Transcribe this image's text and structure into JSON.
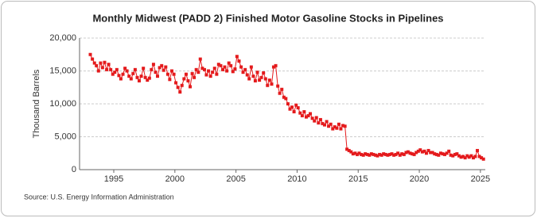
{
  "chart_data": {
    "type": "line",
    "title": "Monthly Midwest (PADD 2) Finished Motor Gasoline Stocks in Pipelines",
    "y_label": "Thousand Barrels",
    "source": "Source: U.S. Energy Information Administration",
    "color": "#e41a1c",
    "grid": true,
    "xlim": [
      1992.2,
      2025.4
    ],
    "xticks": [
      1995,
      2000,
      2005,
      2010,
      2015,
      2020,
      2025
    ],
    "ylim": [
      0,
      20000
    ],
    "yticks": [
      0,
      {
        "value": 5000,
        "label": "5,000"
      },
      {
        "value": 10000,
        "label": "10,000"
      },
      {
        "value": 15000,
        "label": "15,000"
      },
      {
        "value": 20000,
        "label": "20,000"
      }
    ],
    "x": [
      1993.08,
      1993.25,
      1993.42,
      1993.58,
      1993.75,
      1993.92,
      1994.08,
      1994.25,
      1994.42,
      1994.58,
      1994.75,
      1994.92,
      1995.08,
      1995.25,
      1995.42,
      1995.58,
      1995.75,
      1995.92,
      1996.08,
      1996.25,
      1996.42,
      1996.58,
      1996.75,
      1996.92,
      1997.08,
      1997.25,
      1997.42,
      1997.58,
      1997.75,
      1997.92,
      1998.08,
      1998.25,
      1998.42,
      1998.58,
      1998.75,
      1998.92,
      1999.08,
      1999.25,
      1999.42,
      1999.58,
      1999.75,
      1999.92,
      2000.08,
      2000.25,
      2000.42,
      2000.58,
      2000.75,
      2000.92,
      2001.08,
      2001.25,
      2001.42,
      2001.58,
      2001.75,
      2001.92,
      2002.08,
      2002.25,
      2002.42,
      2002.58,
      2002.75,
      2002.92,
      2003.08,
      2003.25,
      2003.42,
      2003.58,
      2003.75,
      2003.92,
      2004.08,
      2004.25,
      2004.42,
      2004.58,
      2004.75,
      2004.92,
      2005.08,
      2005.25,
      2005.42,
      2005.58,
      2005.75,
      2005.92,
      2006.08,
      2006.25,
      2006.42,
      2006.58,
      2006.75,
      2006.92,
      2007.08,
      2007.25,
      2007.42,
      2007.58,
      2007.75,
      2007.92,
      2008.08,
      2008.25,
      2008.42,
      2008.58,
      2008.75,
      2008.92,
      2009.08,
      2009.25,
      2009.42,
      2009.58,
      2009.75,
      2009.92,
      2010.08,
      2010.25,
      2010.42,
      2010.58,
      2010.75,
      2010.92,
      2011.08,
      2011.25,
      2011.42,
      2011.58,
      2011.75,
      2011.92,
      2012.08,
      2012.25,
      2012.42,
      2012.58,
      2012.75,
      2012.92,
      2013.08,
      2013.25,
      2013.42,
      2013.58,
      2013.75,
      2013.92,
      2014.08,
      2014.25,
      2014.42,
      2014.58,
      2014.75,
      2014.92,
      2015.08,
      2015.25,
      2015.42,
      2015.58,
      2015.75,
      2015.92,
      2016.08,
      2016.25,
      2016.42,
      2016.58,
      2016.75,
      2016.92,
      2017.08,
      2017.25,
      2017.42,
      2017.58,
      2017.75,
      2017.92,
      2018.08,
      2018.25,
      2018.42,
      2018.58,
      2018.75,
      2018.92,
      2019.08,
      2019.25,
      2019.42,
      2019.58,
      2019.75,
      2019.92,
      2020.08,
      2020.25,
      2020.42,
      2020.58,
      2020.75,
      2020.92,
      2021.08,
      2021.25,
      2021.42,
      2021.58,
      2021.75,
      2021.92,
      2022.08,
      2022.25,
      2022.42,
      2022.58,
      2022.75,
      2022.92,
      2023.08,
      2023.25,
      2023.42,
      2023.58,
      2023.75,
      2023.92,
      2024.08,
      2024.25,
      2024.42,
      2024.58,
      2024.75,
      2024.92,
      2025.08,
      2025.25
    ],
    "values": [
      17500,
      16800,
      16200,
      15800,
      15000,
      16200,
      15500,
      16300,
      15200,
      16000,
      15200,
      14500,
      14800,
      15200,
      14300,
      13800,
      14500,
      15400,
      15000,
      14200,
      13800,
      14600,
      15200,
      14000,
      13500,
      14200,
      15400,
      14000,
      13600,
      13900,
      15200,
      16000,
      14800,
      14200,
      15500,
      15800,
      15100,
      15600,
      14500,
      13700,
      15000,
      14500,
      13200,
      12500,
      11800,
      12800,
      13800,
      14500,
      13500,
      12600,
      14600,
      14000,
      15200,
      14800,
      16800,
      15400,
      15200,
      14400,
      15000,
      14200,
      14800,
      15400,
      14500,
      16000,
      15800,
      15200,
      15600,
      15000,
      16200,
      15800,
      14900,
      15300,
      17200,
      16500,
      15600,
      14800,
      15200,
      14400,
      13800,
      15600,
      14200,
      13500,
      14800,
      13600,
      14000,
      14700,
      13800,
      12800,
      13600,
      13000,
      15600,
      15800,
      12700,
      11600,
      12200,
      11000,
      10800,
      10000,
      9200,
      9500,
      8800,
      9800,
      9400,
      8600,
      8200,
      8800,
      8000,
      8200,
      8500,
      7800,
      7400,
      7900,
      7100,
      7600,
      7000,
      6800,
      7300,
      6600,
      6900,
      6200,
      6500,
      6300,
      6900,
      6200,
      6700,
      6600,
      3100,
      2900,
      2700,
      2400,
      2500,
      2300,
      2500,
      2300,
      2200,
      2400,
      2300,
      2200,
      2400,
      2300,
      2200,
      2100,
      2300,
      2200,
      2400,
      2300,
      2200,
      2300,
      2400,
      2200,
      2300,
      2500,
      2200,
      2400,
      2300,
      2600,
      2700,
      2500,
      2400,
      2300,
      2600,
      2800,
      3000,
      2700,
      2800,
      2500,
      2900,
      2600,
      2600,
      2400,
      2300,
      2200,
      2500,
      2400,
      2300,
      2500,
      2800,
      2200,
      2100,
      2300,
      2400,
      2100,
      1900,
      2000,
      1800,
      2100,
      1900,
      2100,
      1800,
      2000,
      2900,
      2000,
      1800,
      1600
    ]
  }
}
